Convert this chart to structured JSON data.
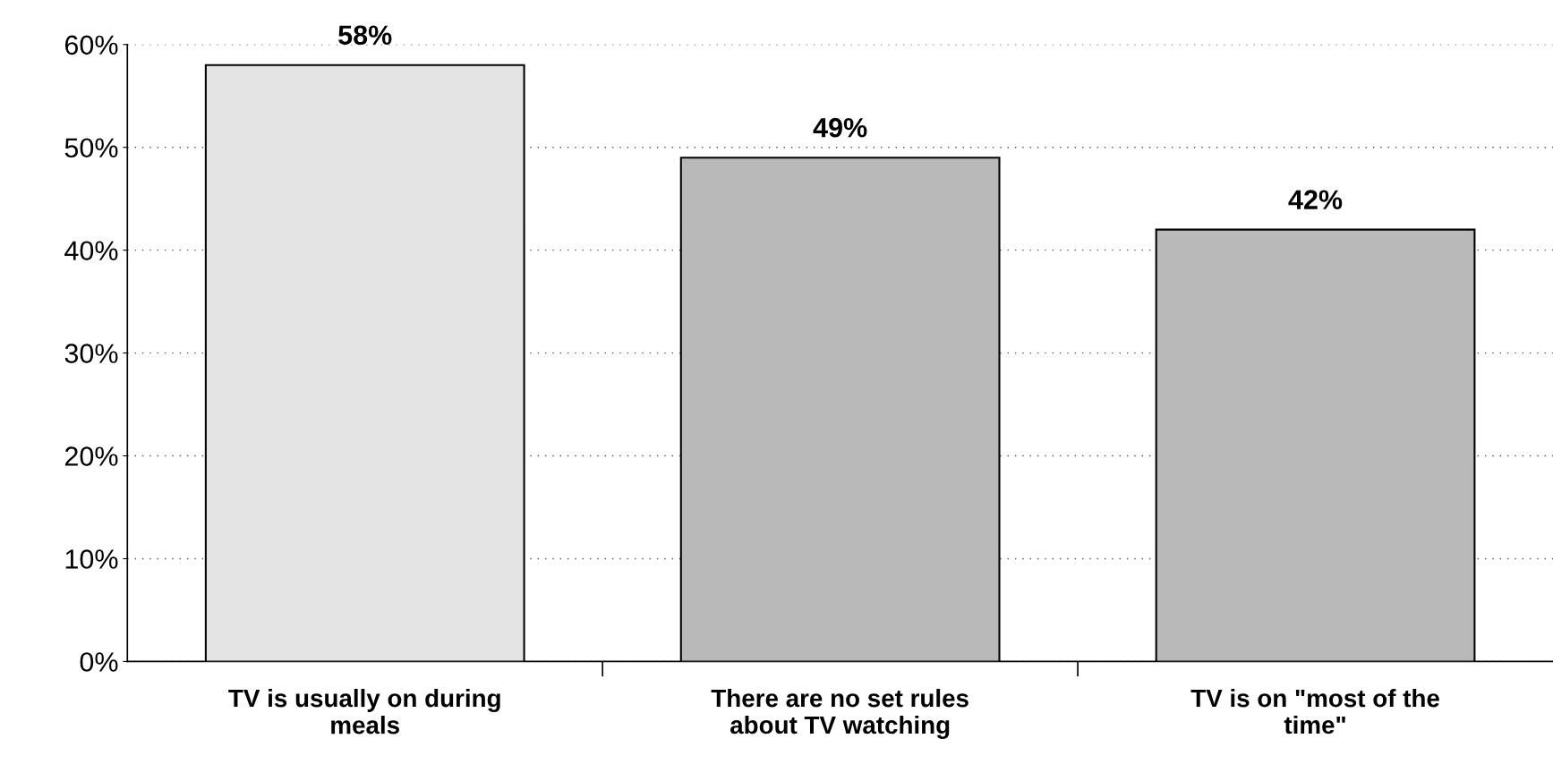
{
  "chart_data": {
    "type": "bar",
    "categories": [
      "TV is usually on during\nmeals",
      "There are no set rules\nabout TV watching",
      "TV is on \"most of the\ntime\""
    ],
    "values": [
      58,
      49,
      42
    ],
    "colors": [
      "#e4e4e4",
      "#b9b9b9",
      "#b9b9b9"
    ],
    "ylim": [
      0,
      60
    ],
    "yticks": [
      {
        "value": 0,
        "label": "0%"
      },
      {
        "value": 10,
        "label": "10%"
      },
      {
        "value": 20,
        "label": "20%"
      },
      {
        "value": 30,
        "label": "30%"
      },
      {
        "value": 40,
        "label": "40%"
      },
      {
        "value": 50,
        "label": "50%"
      },
      {
        "value": 60,
        "label": "60%"
      }
    ],
    "value_labels": [
      "58%",
      "49%",
      "42%"
    ],
    "grid": "y"
  }
}
